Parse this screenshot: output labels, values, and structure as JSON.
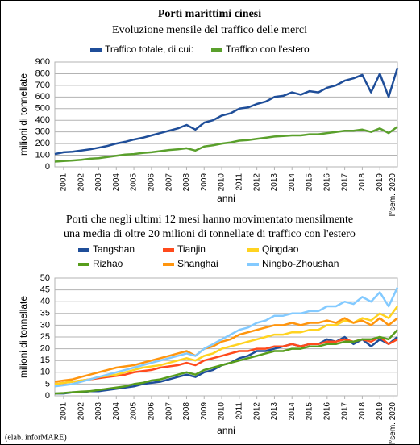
{
  "title": "Porti marittimi cinesi",
  "source": "(elab. inforMARE)",
  "chart_data": [
    {
      "type": "line",
      "title": [
        "Evoluzione mensile del traffico delle merci"
      ],
      "y_label": "milioni di tonnellate",
      "x_label": "anni",
      "x": [
        2001,
        2001.5,
        2002,
        2002.5,
        2003,
        2003.5,
        2004,
        2004.5,
        2005,
        2005.5,
        2006,
        2006.5,
        2007,
        2007.5,
        2008,
        2008.5,
        2009,
        2009.5,
        2010,
        2010.5,
        2011,
        2011.5,
        2012,
        2012.5,
        2013,
        2013.5,
        2014,
        2014.5,
        2015,
        2015.5,
        2016,
        2016.5,
        2017,
        2017.5,
        2018,
        2018.5,
        2019,
        2019.5,
        2020,
        2020.5
      ],
      "xlim": [
        2001,
        2020.5
      ],
      "xticks": [
        {
          "value": 2001.5,
          "label": "2001"
        },
        {
          "value": 2002.5,
          "label": "2002"
        },
        {
          "value": 2003.5,
          "label": "2003"
        },
        {
          "value": 2004.5,
          "label": "2004"
        },
        {
          "value": 2005.5,
          "label": "2005"
        },
        {
          "value": 2006.5,
          "label": "2006"
        },
        {
          "value": 2007.5,
          "label": "2007"
        },
        {
          "value": 2008.5,
          "label": "2008"
        },
        {
          "value": 2009.5,
          "label": "2009"
        },
        {
          "value": 2010.5,
          "label": "2010"
        },
        {
          "value": 2011.5,
          "label": "2011"
        },
        {
          "value": 2012.5,
          "label": "2012"
        },
        {
          "value": 2013.5,
          "label": "2013"
        },
        {
          "value": 2014.5,
          "label": "2014"
        },
        {
          "value": 2015.5,
          "label": "2015"
        },
        {
          "value": 2016.5,
          "label": "2016"
        },
        {
          "value": 2017.5,
          "label": "2017"
        },
        {
          "value": 2018.5,
          "label": "2018"
        },
        {
          "value": 2019.5,
          "label": "2019"
        },
        {
          "value": 2020.25,
          "label": "I°sem. 2020"
        }
      ],
      "ylim": [
        0,
        900
      ],
      "yticks": [
        0,
        100,
        200,
        300,
        400,
        500,
        600,
        700,
        800,
        900
      ],
      "grid": true,
      "legend_columns": 2,
      "series": [
        {
          "name": "Traffico totale, di cui:",
          "color": "#1f4e99",
          "values": [
            110,
            125,
            130,
            140,
            150,
            165,
            180,
            200,
            215,
            235,
            250,
            270,
            290,
            310,
            330,
            360,
            320,
            380,
            400,
            440,
            460,
            500,
            510,
            540,
            560,
            600,
            610,
            640,
            620,
            650,
            640,
            680,
            700,
            740,
            760,
            790,
            640,
            800,
            600,
            850
          ]
        },
        {
          "name": "Traffico con l'estero",
          "color": "#5aa02c",
          "values": [
            45,
            50,
            55,
            60,
            70,
            75,
            85,
            95,
            105,
            110,
            120,
            125,
            135,
            145,
            150,
            160,
            140,
            175,
            185,
            200,
            210,
            225,
            230,
            240,
            250,
            260,
            265,
            270,
            270,
            280,
            280,
            290,
            300,
            310,
            310,
            320,
            300,
            330,
            290,
            345
          ]
        }
      ]
    },
    {
      "type": "line",
      "title": [
        "Porti che negli ultimi 12 mesi hanno movimentato mensilmente",
        "una media di oltre 20 milioni di tonnellate di traffico con l'estero"
      ],
      "y_label": "milioni di tonnellate",
      "x_label": "anni",
      "x": [
        2001,
        2001.5,
        2002,
        2002.5,
        2003,
        2003.5,
        2004,
        2004.5,
        2005,
        2005.5,
        2006,
        2006.5,
        2007,
        2007.5,
        2008,
        2008.5,
        2009,
        2009.5,
        2010,
        2010.5,
        2011,
        2011.5,
        2012,
        2012.5,
        2013,
        2013.5,
        2014,
        2014.5,
        2015,
        2015.5,
        2016,
        2016.5,
        2017,
        2017.5,
        2018,
        2018.5,
        2019,
        2019.5,
        2020,
        2020.5
      ],
      "xlim": [
        2001,
        2020.5
      ],
      "xticks": [
        {
          "value": 2001.5,
          "label": "2001"
        },
        {
          "value": 2002.5,
          "label": "2002"
        },
        {
          "value": 2003.5,
          "label": "2003"
        },
        {
          "value": 2004.5,
          "label": "2004"
        },
        {
          "value": 2005.5,
          "label": "2005"
        },
        {
          "value": 2006.5,
          "label": "2006"
        },
        {
          "value": 2007.5,
          "label": "2007"
        },
        {
          "value": 2008.5,
          "label": "2008"
        },
        {
          "value": 2009.5,
          "label": "2009"
        },
        {
          "value": 2010.5,
          "label": "2010"
        },
        {
          "value": 2011.5,
          "label": "2011"
        },
        {
          "value": 2012.5,
          "label": "2012"
        },
        {
          "value": 2013.5,
          "label": "2013"
        },
        {
          "value": 2014.5,
          "label": "2014"
        },
        {
          "value": 2015.5,
          "label": "2015"
        },
        {
          "value": 2016.5,
          "label": "2016"
        },
        {
          "value": 2017.5,
          "label": "2017"
        },
        {
          "value": 2018.5,
          "label": "2018"
        },
        {
          "value": 2019.5,
          "label": "2019"
        },
        {
          "value": 2020.25,
          "label": "I°sem. 2020"
        }
      ],
      "ylim": [
        0,
        50
      ],
      "yticks": [
        0,
        5,
        10,
        15,
        20,
        25,
        30,
        35,
        40,
        45,
        50
      ],
      "grid": true,
      "legend_columns": 3,
      "series": [
        {
          "name": "Tangshan",
          "color": "#1f4e99",
          "values": [
            1,
            1,
            1.5,
            1.5,
            2,
            2,
            2.5,
            3,
            3.5,
            4,
            5,
            5.5,
            6,
            7,
            8,
            9,
            8,
            10,
            11,
            13,
            14,
            16,
            17,
            19,
            19,
            20,
            21,
            22,
            21,
            22,
            22,
            24,
            23,
            25,
            22,
            24,
            21,
            24,
            22,
            25
          ]
        },
        {
          "name": "Tianjin",
          "color": "#ff4a1c",
          "values": [
            5,
            5.5,
            6,
            6.5,
            7,
            7.5,
            8,
            8.5,
            9,
            10,
            10.5,
            11,
            12,
            12.5,
            13,
            14,
            13,
            15,
            16,
            17,
            18,
            19,
            19,
            20,
            20,
            21,
            21,
            22,
            21,
            22,
            22,
            23,
            23,
            24,
            23,
            24,
            23,
            25,
            22,
            24
          ]
        },
        {
          "name": "Qingdao",
          "color": "#ffd320",
          "values": [
            5,
            5.5,
            6,
            6.5,
            7,
            8,
            8.5,
            9,
            10,
            11,
            12,
            12.5,
            13,
            14,
            15,
            16,
            15,
            17,
            18,
            20,
            21,
            22,
            23,
            24,
            25,
            26,
            26,
            27,
            27,
            28,
            28,
            30,
            30,
            32,
            31,
            33,
            32,
            35,
            33,
            38
          ]
        },
        {
          "name": "Rizhao",
          "color": "#579d1c",
          "values": [
            1,
            1.2,
            1.5,
            1.8,
            2,
            2.5,
            3,
            3.5,
            4,
            5,
            5.5,
            6.5,
            7,
            8,
            9,
            10,
            9,
            11,
            12,
            13,
            14,
            15,
            16,
            17,
            18,
            19,
            19,
            20,
            20,
            21,
            21,
            22,
            22,
            23,
            23,
            24,
            24,
            25,
            24,
            28
          ]
        },
        {
          "name": "Shanghai",
          "color": "#ff950e",
          "values": [
            6,
            6.5,
            7,
            8,
            9,
            10,
            11,
            12,
            12.5,
            13,
            14,
            15,
            16,
            17,
            18,
            19,
            17,
            20,
            21,
            23,
            24,
            26,
            27,
            28,
            29,
            30,
            30,
            31,
            30,
            31,
            31,
            32,
            31,
            33,
            31,
            32,
            30,
            33,
            30,
            33
          ]
        },
        {
          "name": "Ningbo-Zhoushan",
          "color": "#83caff",
          "values": [
            4,
            4.5,
            5,
            6,
            7,
            8,
            9,
            10,
            11,
            12,
            13,
            14,
            15,
            16,
            17,
            18,
            17,
            20,
            22,
            24,
            26,
            28,
            29,
            31,
            32,
            34,
            34,
            35,
            35,
            36,
            36,
            38,
            38,
            40,
            39,
            42,
            40,
            44,
            38,
            46
          ]
        }
      ]
    }
  ]
}
